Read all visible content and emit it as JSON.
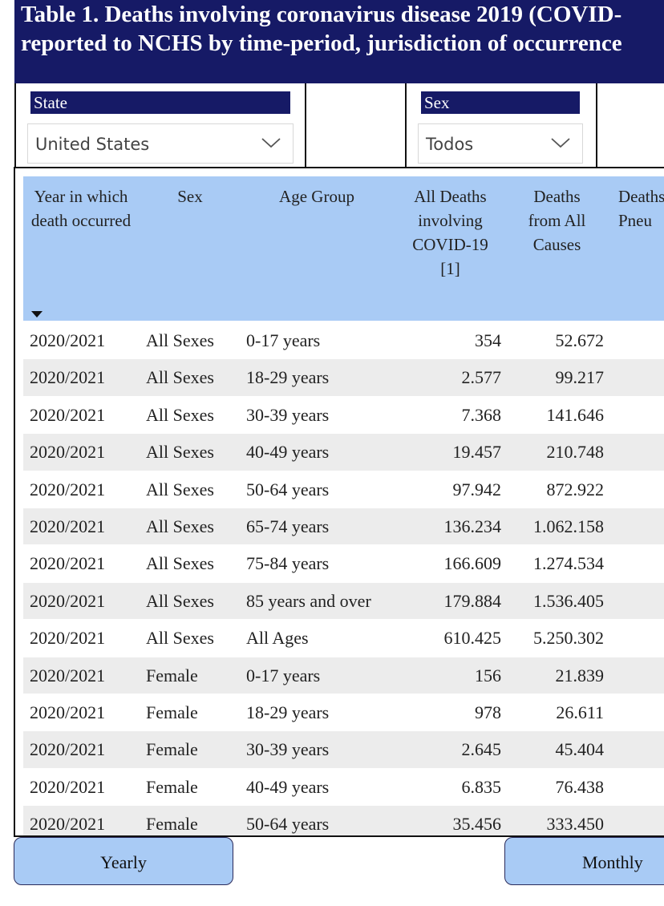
{
  "title": {
    "line1": "Table 1. Deaths involving coronavirus disease 2019 (COVID-",
    "line2": "reported to NCHS by time-period, jurisdiction of occurrence"
  },
  "filters": {
    "state": {
      "label": "State",
      "value": "United States",
      "icon": "chevron-down-icon"
    },
    "sex": {
      "label": "Sex",
      "value": "Todos",
      "icon": "chevron-down-icon"
    }
  },
  "table": {
    "headers": {
      "year": "Year in which death occurred",
      "sex": "Sex",
      "age": "Age Group",
      "covid": "All Deaths involving COVID-19 [1]",
      "all_causes": "Deaths from All Causes",
      "pneumonia": "Deaths Pneu"
    },
    "sort_icon": "sort-descending-icon",
    "rows": [
      {
        "year": "2020/2021",
        "sex": "All Sexes",
        "age": "0-17 years",
        "covid": "354",
        "all": "52.672"
      },
      {
        "year": "2020/2021",
        "sex": "All Sexes",
        "age": "18-29 years",
        "covid": "2.577",
        "all": "99.217"
      },
      {
        "year": "2020/2021",
        "sex": "All Sexes",
        "age": "30-39 years",
        "covid": "7.368",
        "all": "141.646"
      },
      {
        "year": "2020/2021",
        "sex": "All Sexes",
        "age": "40-49 years",
        "covid": "19.457",
        "all": "210.748"
      },
      {
        "year": "2020/2021",
        "sex": "All Sexes",
        "age": "50-64 years",
        "covid": "97.942",
        "all": "872.922"
      },
      {
        "year": "2020/2021",
        "sex": "All Sexes",
        "age": "65-74 years",
        "covid": "136.234",
        "all": "1.062.158"
      },
      {
        "year": "2020/2021",
        "sex": "All Sexes",
        "age": "75-84 years",
        "covid": "166.609",
        "all": "1.274.534"
      },
      {
        "year": "2020/2021",
        "sex": "All Sexes",
        "age": "85 years and over",
        "covid": "179.884",
        "all": "1.536.405"
      },
      {
        "year": "2020/2021",
        "sex": "All Sexes",
        "age": "All Ages",
        "covid": "610.425",
        "all": "5.250.302"
      },
      {
        "year": "2020/2021",
        "sex": "Female",
        "age": "0-17 years",
        "covid": "156",
        "all": "21.839"
      },
      {
        "year": "2020/2021",
        "sex": "Female",
        "age": "18-29 years",
        "covid": "978",
        "all": "26.611"
      },
      {
        "year": "2020/2021",
        "sex": "Female",
        "age": "30-39 years",
        "covid": "2.645",
        "all": "45.404"
      },
      {
        "year": "2020/2021",
        "sex": "Female",
        "age": "40-49 years",
        "covid": "6.835",
        "all": "76.438"
      },
      {
        "year": "2020/2021",
        "sex": "Female",
        "age": "50-64 years",
        "covid": "35.456",
        "all": "333.450"
      }
    ]
  },
  "buttons": {
    "yearly": "Yearly",
    "monthly": "Monthly"
  },
  "colors": {
    "navy": "#161a66",
    "header_blue": "#a9cbf5",
    "row_alt": "#ececec"
  }
}
